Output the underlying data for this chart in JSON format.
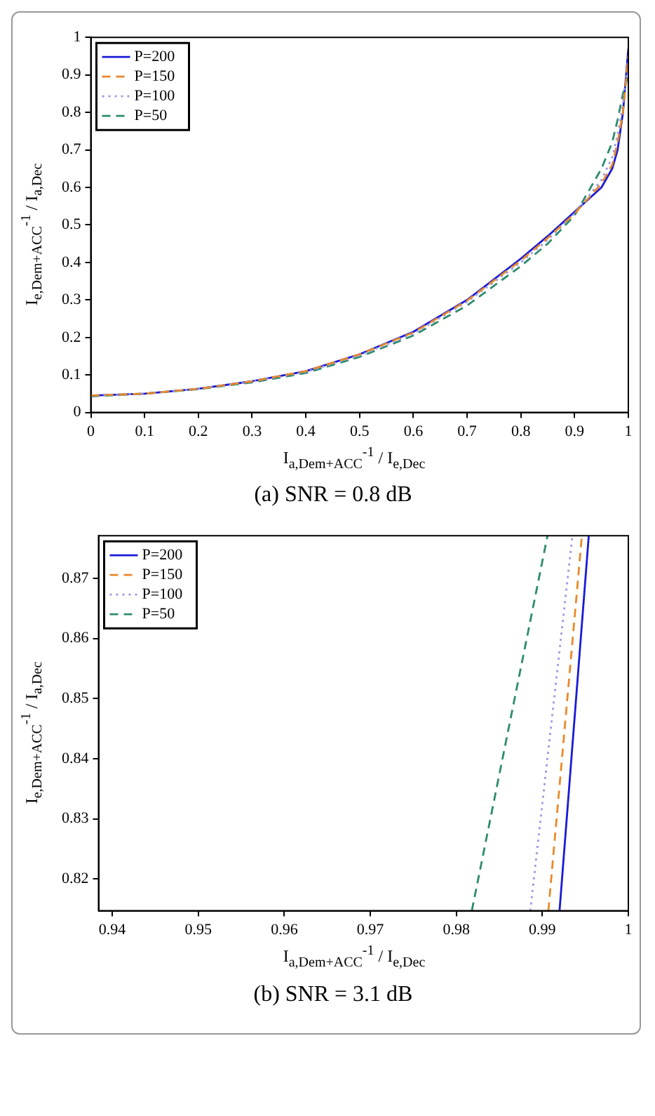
{
  "chart_data": [
    {
      "type": "line",
      "xlabel": "I$_{a,Dem+ACC}$$^{-1}$ / I$_{e,Dec}$",
      "ylabel": "I$_{e,Dem+ACC}$$^{-1}$ / I$_{a,Dec}$",
      "annotations": [
        "(a) SNR = 0.8 dB"
      ],
      "xlim": [
        0,
        1
      ],
      "ylim": [
        0,
        1
      ],
      "xticks": [
        0,
        0.1,
        0.2,
        0.3,
        0.4,
        0.5,
        0.6,
        0.7,
        0.8,
        0.9,
        1
      ],
      "yticks": [
        0,
        0.1,
        0.2,
        0.3,
        0.4,
        0.5,
        0.6,
        0.7,
        0.8,
        0.9,
        1
      ],
      "grid": false,
      "legend": "top left",
      "marker": "none",
      "series": [
        {
          "name": "P=200",
          "color": "#1a1ad8",
          "line_style": "solid",
          "x": [
            0,
            0.1,
            0.2,
            0.3,
            0.4,
            0.5,
            0.6,
            0.7,
            0.8,
            0.85,
            0.9,
            0.95,
            0.97,
            0.98,
            0.99,
            1
          ],
          "values": [
            0.045,
            0.05,
            0.063,
            0.083,
            0.11,
            0.155,
            0.215,
            0.3,
            0.41,
            0.47,
            0.535,
            0.6,
            0.65,
            0.7,
            0.8,
            0.97
          ]
        },
        {
          "name": "P=150",
          "color": "#e8892b",
          "line_style": "dashed",
          "x": [
            0,
            0.1,
            0.2,
            0.3,
            0.4,
            0.5,
            0.6,
            0.7,
            0.8,
            0.85,
            0.9,
            0.95,
            0.97,
            0.98,
            0.99,
            1
          ],
          "values": [
            0.045,
            0.05,
            0.063,
            0.083,
            0.11,
            0.155,
            0.213,
            0.298,
            0.405,
            0.465,
            0.53,
            0.61,
            0.66,
            0.72,
            0.8,
            0.95
          ]
        },
        {
          "name": "P=100",
          "color": "#9a9ae6",
          "line_style": "dotted",
          "x": [
            0,
            0.1,
            0.2,
            0.3,
            0.4,
            0.5,
            0.6,
            0.7,
            0.8,
            0.85,
            0.9,
            0.95,
            0.97,
            0.98,
            0.99,
            1
          ],
          "values": [
            0.045,
            0.05,
            0.063,
            0.082,
            0.108,
            0.152,
            0.21,
            0.295,
            0.4,
            0.46,
            0.53,
            0.62,
            0.68,
            0.74,
            0.82,
            0.95
          ]
        },
        {
          "name": "P=50",
          "color": "#2e8b6e",
          "line_style": "dashed",
          "x": [
            0,
            0.1,
            0.2,
            0.3,
            0.4,
            0.5,
            0.6,
            0.7,
            0.8,
            0.85,
            0.9,
            0.95,
            0.97,
            0.98,
            0.99,
            1
          ],
          "values": [
            0.043,
            0.05,
            0.062,
            0.08,
            0.105,
            0.148,
            0.205,
            0.285,
            0.39,
            0.45,
            0.525,
            0.65,
            0.72,
            0.78,
            0.85,
            0.9
          ]
        }
      ]
    },
    {
      "type": "line",
      "xlabel": "I$_{a,Dem+ACC}$$^{-1}$ / I$_{e,Dec}$",
      "ylabel": "I$_{e,Dem+ACC}$$^{-1}$ / I$_{a,Dec}$",
      "annotations": [
        "(b) SNR = 3.1 dB"
      ],
      "xlim": [
        0.9384,
        1
      ],
      "ylim": [
        0.8147,
        0.8771
      ],
      "xticks": [
        0.94,
        0.95,
        0.96,
        0.97,
        0.98,
        0.99,
        1
      ],
      "yticks": [
        0.82,
        0.83,
        0.84,
        0.85,
        0.86,
        0.87
      ],
      "grid": false,
      "legend": "top left",
      "marker": "none",
      "series": [
        {
          "name": "P=200",
          "color": "#1a1ad8",
          "line_style": "solid",
          "x": [
            0.992,
            0.9954
          ],
          "values": [
            0.8147,
            0.8771
          ]
        },
        {
          "name": "P=150",
          "color": "#e8892b",
          "line_style": "dashed",
          "x": [
            0.9907,
            0.9946
          ],
          "values": [
            0.8147,
            0.8771
          ]
        },
        {
          "name": "P=100",
          "color": "#9a9ae6",
          "line_style": "dotted",
          "x": [
            0.9886,
            0.9935
          ],
          "values": [
            0.8147,
            0.8771
          ]
        },
        {
          "name": "P=50",
          "color": "#2e8b6e",
          "line_style": "dashed",
          "x": [
            0.9818,
            0.9906
          ],
          "values": [
            0.8147,
            0.8771
          ]
        }
      ]
    }
  ]
}
